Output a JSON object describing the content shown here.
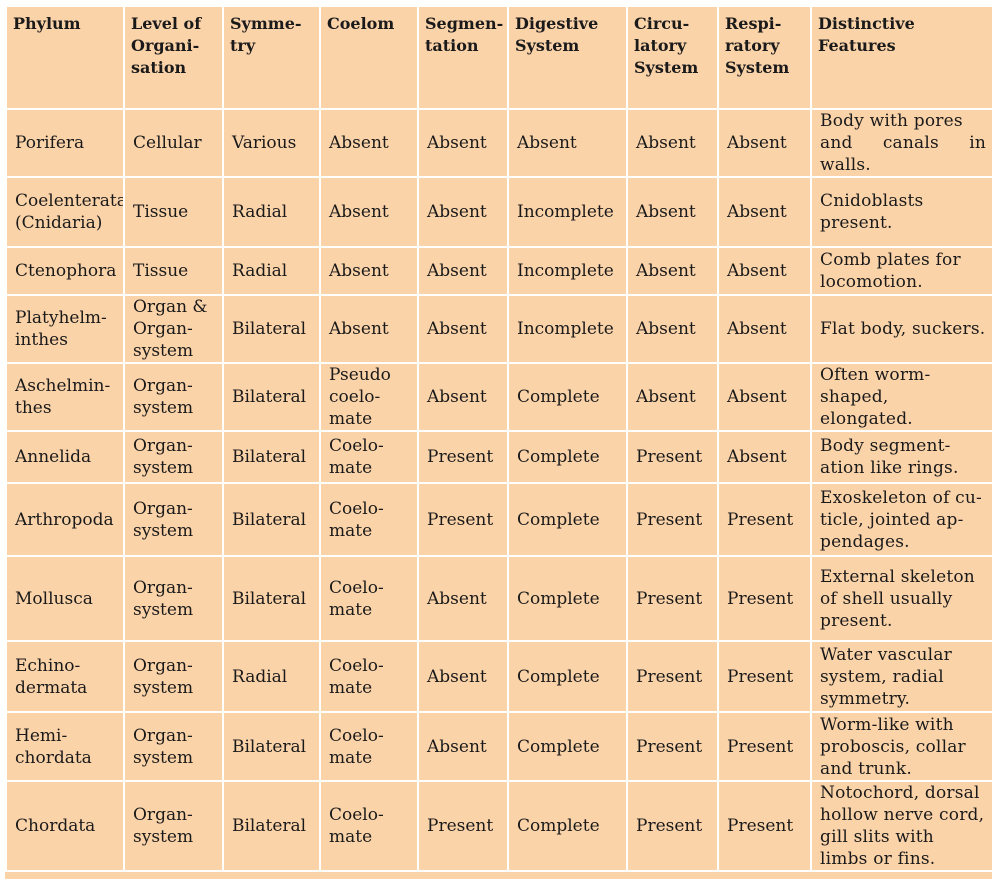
{
  "table": {
    "headers": [
      "Phylum",
      "Level of\nOrgani-\nsation",
      "Symme-\ntry",
      "Coelom",
      "Segmen-\ntation",
      "Digestive\nSystem",
      "Circu-\nlatory\nSystem",
      "Respi-\nratory\nSystem",
      "Distinctive\nFeatures"
    ],
    "rows": [
      [
        "Porifera",
        "Cellular",
        "Various",
        "Absent",
        "Absent",
        "Absent",
        "Absent",
        "Absent",
        "Body with pores\nand canals in walls."
      ],
      [
        "Coelenterata\n(Cnidaria)",
        "Tissue",
        "Radial",
        "Absent",
        "Absent",
        "Incomplete",
        "Absent",
        "Absent",
        "Cnidoblasts\npresent."
      ],
      [
        "Ctenophora",
        "Tissue",
        "Radial",
        "Absent",
        "Absent",
        "Incomplete",
        "Absent",
        "Absent",
        "Comb plates for\nlocomotion."
      ],
      [
        "Platyhelm-\ninthes",
        "Organ &\nOrgan-\nsystem",
        "Bilateral",
        "Absent",
        "Absent",
        "Incomplete",
        "Absent",
        "Absent",
        "Flat body, suckers."
      ],
      [
        "Aschelmin-\nthes",
        "Organ-\nsystem",
        "Bilateral",
        "Pseudo\ncoelo-\nmate",
        "Absent",
        "Complete",
        "Absent",
        "Absent",
        "Often worm-\nshaped,\nelongated."
      ],
      [
        "Annelida",
        "Organ-\nsystem",
        "Bilateral",
        "Coelo-\nmate",
        "Present",
        "Complete",
        "Present",
        "Absent",
        "Body segment-\nation like rings."
      ],
      [
        "Arthropoda",
        "Organ-\nsystem",
        "Bilateral",
        "Coelo-\nmate",
        "Present",
        "Complete",
        "Present",
        "Present",
        "Exoskeleton of cu-\nticle, jointed ap-\npendages."
      ],
      [
        "Mollusca",
        "Organ-\nsystem",
        "Bilateral",
        "Coelo-\nmate",
        "Absent",
        "Complete",
        "Present",
        "Present",
        "External skeleton\nof  shell usually\npresent."
      ],
      [
        "Echino-\ndermata",
        "Organ-\nsystem",
        "Radial",
        "Coelo-\nmate",
        "Absent",
        "Complete",
        "Present",
        "Present",
        "Water vascular\nsystem,  radial\nsymmetry."
      ],
      [
        "Hemi-\nchordata",
        "Organ-\nsystem",
        "Bilateral",
        "Coelo-\nmate",
        "Absent",
        "Complete",
        "Present",
        "Present",
        "Worm-like with\nproboscis, collar\nand trunk."
      ],
      [
        "Chordata",
        "Organ-\nsystem",
        "Bilateral",
        "Coelo-\nmate",
        "Present",
        "Complete",
        "Present",
        "Present",
        "Notochord, dorsal\nhollow nerve cord,\ngill slits with\nlimbs or fins."
      ]
    ]
  },
  "colors": {
    "cell_background": "#fbd3a9",
    "grid_lines": "#ffffff",
    "text": "#1a1a1a"
  }
}
